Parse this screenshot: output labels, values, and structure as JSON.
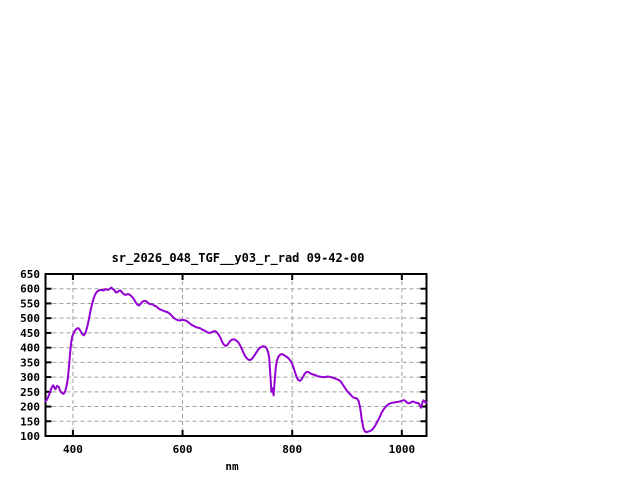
{
  "window": {
    "background_color": "#ffffff"
  },
  "chart_data": {
    "type": "line",
    "title": "sr_2026_048_TGF__y03_r_rad 09-42-00",
    "xlabel": "nm",
    "ylabel": "",
    "xlim": [
      350,
      1045
    ],
    "ylim": [
      100,
      650
    ],
    "xticks": [
      400,
      600,
      800,
      1000
    ],
    "yticks": [
      100,
      150,
      200,
      250,
      300,
      350,
      400,
      450,
      500,
      550,
      600,
      650
    ],
    "grid": true,
    "grid_style": "dashed",
    "legend": "none",
    "colors": {
      "line": "#9400D3",
      "grid": "#a0a0a0",
      "border": "#000000",
      "background": "#ffffff"
    },
    "series": [
      {
        "points": [
          [
            350,
            218
          ],
          [
            352,
            222
          ],
          [
            355,
            232
          ],
          [
            358,
            248
          ],
          [
            361,
            263
          ],
          [
            364,
            272
          ],
          [
            366,
            265
          ],
          [
            368,
            259
          ],
          [
            371,
            270
          ],
          [
            374,
            267
          ],
          [
            377,
            252
          ],
          [
            380,
            246
          ],
          [
            383,
            243
          ],
          [
            386,
            252
          ],
          [
            389,
            275
          ],
          [
            391,
            300
          ],
          [
            393,
            340
          ],
          [
            395,
            385
          ],
          [
            397,
            420
          ],
          [
            399,
            440
          ],
          [
            402,
            452
          ],
          [
            405,
            461
          ],
          [
            408,
            466
          ],
          [
            411,
            465
          ],
          [
            414,
            456
          ],
          [
            417,
            446
          ],
          [
            420,
            442
          ],
          [
            423,
            450
          ],
          [
            426,
            470
          ],
          [
            429,
            495
          ],
          [
            432,
            525
          ],
          [
            435,
            548
          ],
          [
            438,
            568
          ],
          [
            441,
            582
          ],
          [
            444,
            590
          ],
          [
            448,
            595
          ],
          [
            452,
            596
          ],
          [
            456,
            594
          ],
          [
            460,
            599
          ],
          [
            464,
            596
          ],
          [
            468,
            601
          ],
          [
            470,
            604
          ],
          [
            472,
            600
          ],
          [
            475,
            597
          ],
          [
            478,
            588
          ],
          [
            481,
            588
          ],
          [
            484,
            593
          ],
          [
            487,
            594
          ],
          [
            490,
            587
          ],
          [
            493,
            581
          ],
          [
            496,
            579
          ],
          [
            500,
            582
          ],
          [
            503,
            580
          ],
          [
            506,
            576
          ],
          [
            509,
            570
          ],
          [
            512,
            562
          ],
          [
            515,
            552
          ],
          [
            518,
            545
          ],
          [
            521,
            543
          ],
          [
            524,
            550
          ],
          [
            527,
            556
          ],
          [
            530,
            559
          ],
          [
            533,
            558
          ],
          [
            536,
            554
          ],
          [
            539,
            549
          ],
          [
            542,
            547
          ],
          [
            545,
            547
          ],
          [
            548,
            543
          ],
          [
            551,
            541
          ],
          [
            554,
            537
          ],
          [
            557,
            532
          ],
          [
            560,
            529
          ],
          [
            564,
            526
          ],
          [
            568,
            523
          ],
          [
            572,
            521
          ],
          [
            576,
            516
          ],
          [
            580,
            509
          ],
          [
            584,
            501
          ],
          [
            588,
            496
          ],
          [
            592,
            493
          ],
          [
            596,
            492
          ],
          [
            600,
            494
          ],
          [
            604,
            493
          ],
          [
            608,
            490
          ],
          [
            612,
            484
          ],
          [
            616,
            478
          ],
          [
            620,
            474
          ],
          [
            624,
            470
          ],
          [
            628,
            468
          ],
          [
            632,
            466
          ],
          [
            636,
            461
          ],
          [
            640,
            458
          ],
          [
            644,
            453
          ],
          [
            648,
            450
          ],
          [
            652,
            451
          ],
          [
            656,
            455
          ],
          [
            660,
            456
          ],
          [
            663,
            451
          ],
          [
            666,
            444
          ],
          [
            669,
            434
          ],
          [
            672,
            421
          ],
          [
            675,
            411
          ],
          [
            678,
            406
          ],
          [
            681,
            408
          ],
          [
            684,
            415
          ],
          [
            687,
            423
          ],
          [
            690,
            427
          ],
          [
            693,
            428
          ],
          [
            696,
            427
          ],
          [
            699,
            423
          ],
          [
            702,
            417
          ],
          [
            705,
            408
          ],
          [
            708,
            396
          ],
          [
            711,
            383
          ],
          [
            714,
            372
          ],
          [
            717,
            364
          ],
          [
            720,
            359
          ],
          [
            723,
            358
          ],
          [
            726,
            361
          ],
          [
            729,
            368
          ],
          [
            732,
            376
          ],
          [
            735,
            385
          ],
          [
            738,
            393
          ],
          [
            741,
            399
          ],
          [
            744,
            403
          ],
          [
            747,
            405
          ],
          [
            750,
            404
          ],
          [
            753,
            399
          ],
          [
            756,
            385
          ],
          [
            758,
            365
          ],
          [
            760,
            310
          ],
          [
            762,
            250
          ],
          [
            764,
            262
          ],
          [
            766,
            238
          ],
          [
            768,
            285
          ],
          [
            770,
            330
          ],
          [
            772,
            355
          ],
          [
            775,
            370
          ],
          [
            778,
            376
          ],
          [
            781,
            378
          ],
          [
            784,
            376
          ],
          [
            787,
            372
          ],
          [
            790,
            369
          ],
          [
            793,
            364
          ],
          [
            796,
            357
          ],
          [
            799,
            349
          ],
          [
            802,
            335
          ],
          [
            805,
            318
          ],
          [
            808,
            300
          ],
          [
            811,
            290
          ],
          [
            814,
            287
          ],
          [
            817,
            292
          ],
          [
            820,
            302
          ],
          [
            823,
            312
          ],
          [
            826,
            317
          ],
          [
            829,
            318
          ],
          [
            832,
            314
          ],
          [
            835,
            311
          ],
          [
            838,
            309
          ],
          [
            841,
            307
          ],
          [
            844,
            305
          ],
          [
            848,
            302
          ],
          [
            852,
            301
          ],
          [
            856,
            300
          ],
          [
            860,
            300
          ],
          [
            864,
            302
          ],
          [
            868,
            301
          ],
          [
            872,
            299
          ],
          [
            876,
            297
          ],
          [
            880,
            294
          ],
          [
            884,
            291
          ],
          [
            888,
            286
          ],
          [
            892,
            276
          ],
          [
            896,
            264
          ],
          [
            900,
            253
          ],
          [
            904,
            245
          ],
          [
            908,
            237
          ],
          [
            912,
            230
          ],
          [
            915,
            229
          ],
          [
            918,
            227
          ],
          [
            921,
            220
          ],
          [
            924,
            195
          ],
          [
            927,
            155
          ],
          [
            930,
            125
          ],
          [
            933,
            115
          ],
          [
            936,
            113
          ],
          [
            939,
            115
          ],
          [
            942,
            117
          ],
          [
            945,
            120
          ],
          [
            948,
            126
          ],
          [
            951,
            134
          ],
          [
            954,
            144
          ],
          [
            957,
            155
          ],
          [
            960,
            166
          ],
          [
            963,
            178
          ],
          [
            966,
            188
          ],
          [
            969,
            196
          ],
          [
            972,
            202
          ],
          [
            975,
            207
          ],
          [
            978,
            210
          ],
          [
            981,
            212
          ],
          [
            984,
            213
          ],
          [
            987,
            214
          ],
          [
            990,
            215
          ],
          [
            993,
            216
          ],
          [
            996,
            217
          ],
          [
            1000,
            219
          ],
          [
            1003,
            222
          ],
          [
            1006,
            220
          ],
          [
            1009,
            214
          ],
          [
            1012,
            211
          ],
          [
            1015,
            212
          ],
          [
            1018,
            216
          ],
          [
            1021,
            217
          ],
          [
            1024,
            214
          ],
          [
            1027,
            212
          ],
          [
            1030,
            212
          ],
          [
            1033,
            204
          ],
          [
            1035,
            196
          ],
          [
            1037,
            210
          ],
          [
            1039,
            221
          ],
          [
            1041,
            219
          ],
          [
            1043,
            214
          ],
          [
            1045,
            212
          ]
        ]
      }
    ]
  }
}
